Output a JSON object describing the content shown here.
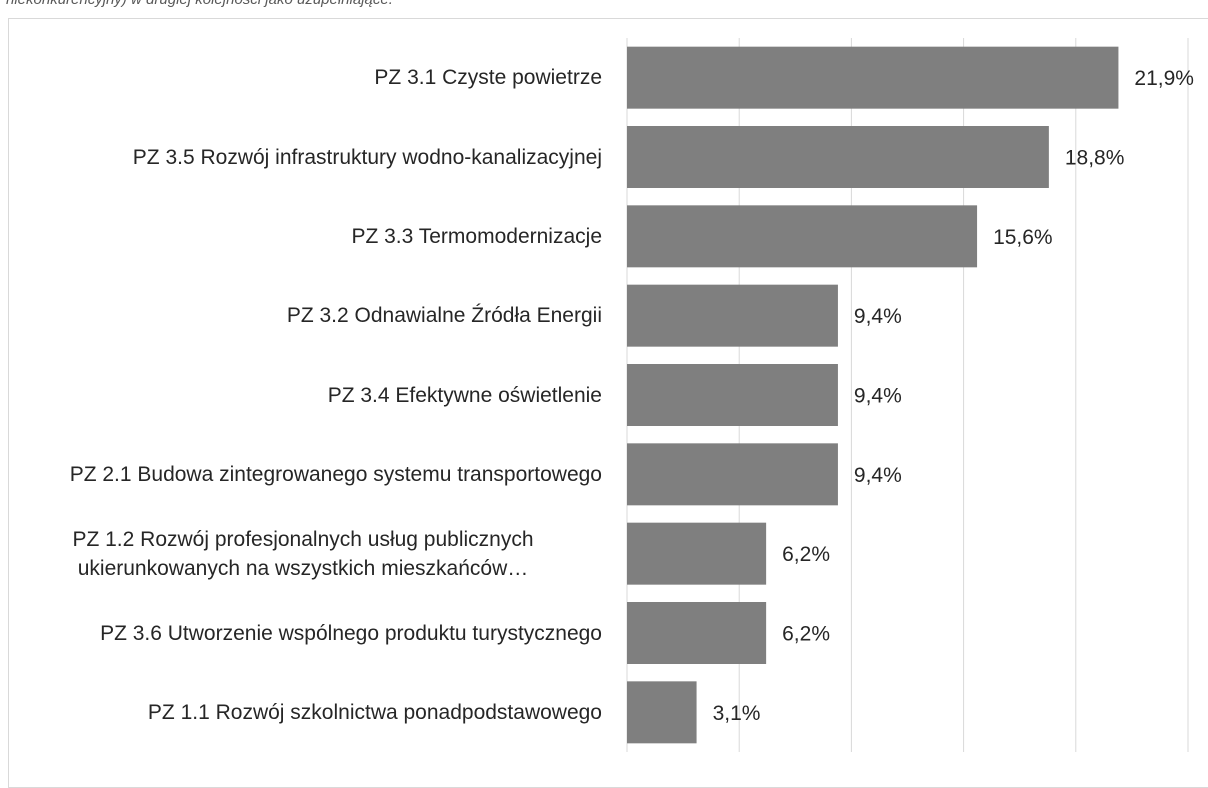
{
  "chart_data": {
    "type": "barh",
    "caption": "niekonkurencyjny) w drugiej kolejności jako uzupełniające.",
    "categories": [
      "PZ 3.1 Czyste powietrze",
      "PZ 3.5 Rozwój infrastruktury wodno-kanalizacyjnej",
      "PZ 3.3 Termomodernizacje",
      "PZ 3.2 Odnawialne Źródła Energii",
      "PZ 3.4 Efektywne oświetlenie",
      "PZ 2.1 Budowa zintegrowanego systemu transportowego",
      "PZ 1.2 Rozwój profesjonalnych usług publicznych ukierunkowanych na wszystkich mieszkańców…",
      "PZ 3.6 Utworzenie wspólnego produktu turystycznego",
      "PZ 1.1 Rozwój szkolnictwa ponadpodstawowego"
    ],
    "values": [
      21.9,
      18.8,
      15.6,
      9.4,
      9.4,
      9.4,
      6.2,
      6.2,
      3.1
    ],
    "value_labels": [
      "21,9%",
      "18,8%",
      "15,6%",
      "9,4%",
      "9,4%",
      "9,4%",
      "6,2%",
      "6,2%",
      "3,1%"
    ],
    "color": "#7f7f7f",
    "xlim": [
      0,
      25
    ],
    "xticks": [
      0,
      5,
      10,
      15,
      20,
      25
    ],
    "grid": true
  }
}
